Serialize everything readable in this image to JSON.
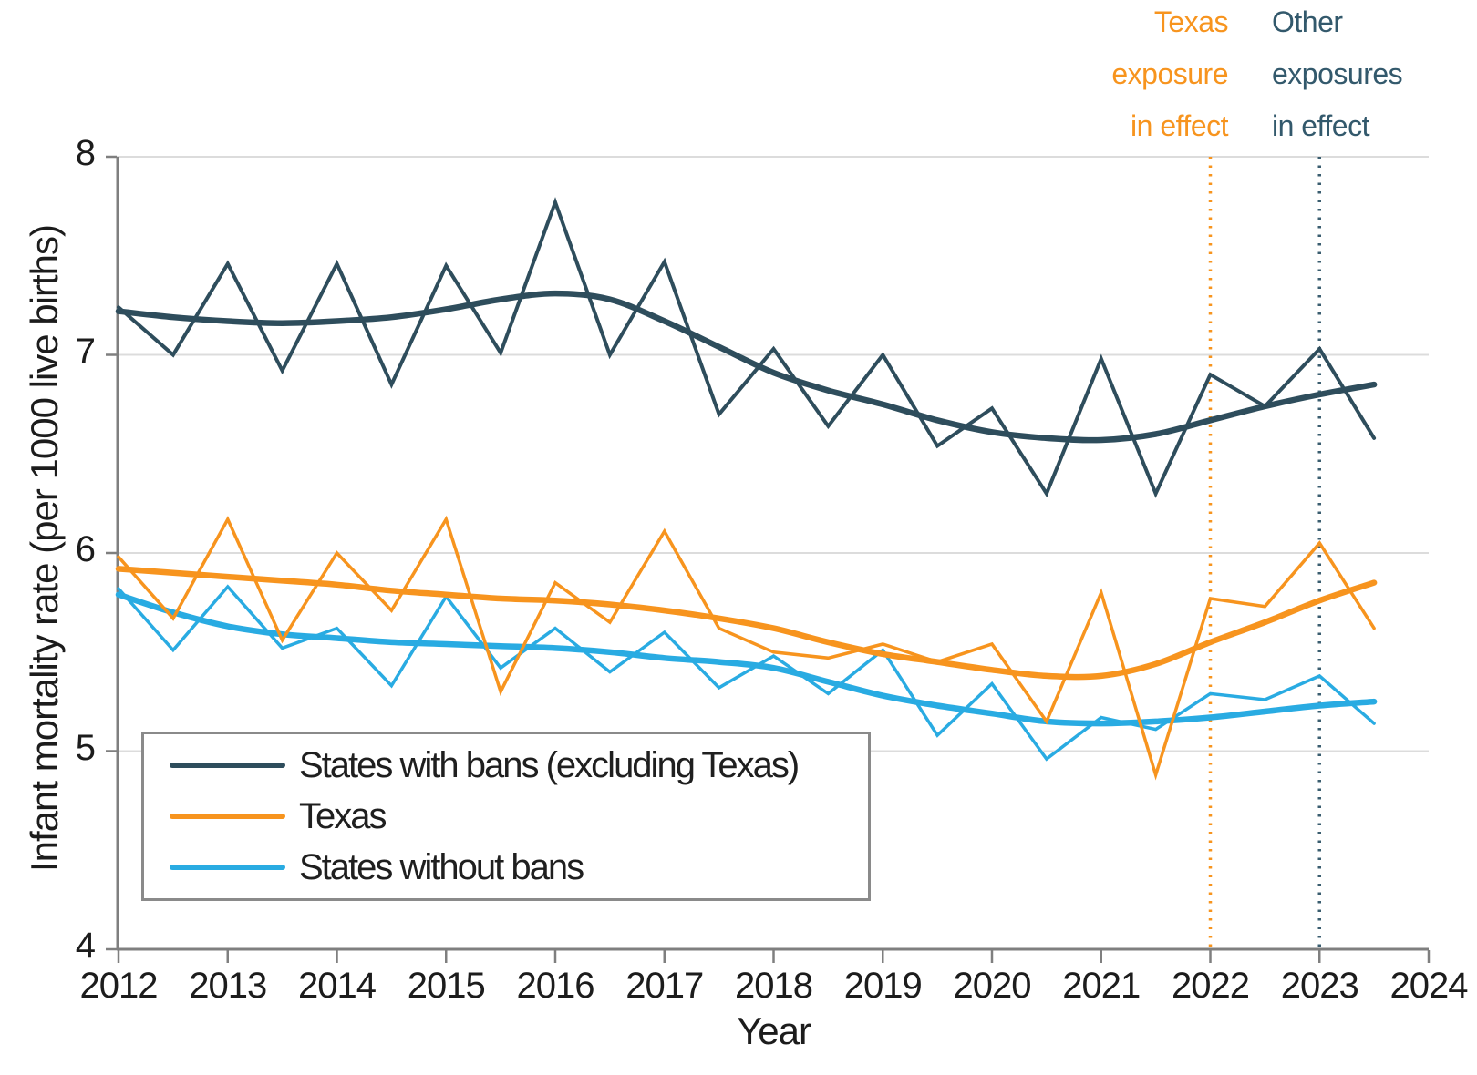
{
  "axes": {
    "x": {
      "title": "Year",
      "ticks": [
        2012,
        2013,
        2014,
        2015,
        2016,
        2017,
        2018,
        2019,
        2020,
        2021,
        2022,
        2023,
        2024
      ]
    },
    "y": {
      "title": "Infant mortality rate (per 1000 live births)",
      "ticks": [
        8,
        7,
        6,
        5,
        4
      ]
    }
  },
  "annotations": {
    "texas": {
      "lines": [
        "Texas",
        "exposure",
        "in effect"
      ],
      "color": "#F7941E"
    },
    "other": {
      "lines": [
        "Other",
        "exposures",
        "in effect"
      ],
      "color": "#33596C"
    }
  },
  "legend": {
    "items": [
      {
        "label": "States with bans (excluding Texas)",
        "series": "bans_raw"
      },
      {
        "label": "Texas",
        "series": "texas_raw"
      },
      {
        "label": "States without bans",
        "series": "nobans_raw"
      }
    ]
  },
  "chart_data": {
    "type": "line",
    "title": "",
    "xlabel": "Year",
    "ylabel": "Infant mortality rate (per 1000 live births)",
    "xlim": [
      2012,
      2024
    ],
    "ylim": [
      4,
      8
    ],
    "grid": "horizontal",
    "legend_position": "lower-left",
    "x": [
      2012,
      2012.5,
      2013,
      2013.5,
      2014,
      2014.5,
      2015,
      2015.5,
      2016,
      2016.5,
      2017,
      2017.5,
      2018,
      2018.5,
      2019,
      2019.5,
      2020,
      2020.5,
      2021,
      2021.5,
      2022,
      2022.5,
      2023,
      2023.5
    ],
    "series": [
      {
        "name": "bans_smooth",
        "label": "States with bans (excluding Texas) trend",
        "color": "#2E4D5C",
        "style": "smooth",
        "width": 6.5,
        "values": [
          7.22,
          7.19,
          7.17,
          7.16,
          7.17,
          7.19,
          7.23,
          7.28,
          7.31,
          7.28,
          7.17,
          7.04,
          6.91,
          6.82,
          6.75,
          6.67,
          6.61,
          6.58,
          6.57,
          6.6,
          6.67,
          6.74,
          6.8,
          6.85
        ]
      },
      {
        "name": "bans_raw",
        "label": "States with bans (excluding Texas)",
        "color": "#2E4D5C",
        "style": "raw",
        "width": 4,
        "values": [
          7.24,
          7.0,
          7.46,
          6.92,
          7.46,
          6.85,
          7.45,
          7.01,
          7.77,
          7.0,
          7.47,
          6.7,
          7.03,
          6.64,
          7.0,
          6.54,
          6.73,
          6.3,
          6.98,
          6.3,
          6.9,
          6.74,
          7.03,
          6.58
        ]
      },
      {
        "name": "nobans_smooth",
        "label": "States without bans trend",
        "color": "#29ABE2",
        "style": "smooth",
        "width": 6.5,
        "values": [
          5.79,
          5.7,
          5.63,
          5.59,
          5.57,
          5.55,
          5.54,
          5.53,
          5.52,
          5.5,
          5.47,
          5.45,
          5.42,
          5.35,
          5.28,
          5.23,
          5.19,
          5.15,
          5.14,
          5.15,
          5.17,
          5.2,
          5.23,
          5.25
        ]
      },
      {
        "name": "nobans_raw",
        "label": "States without bans",
        "color": "#29ABE2",
        "style": "raw",
        "width": 3.5,
        "values": [
          5.82,
          5.51,
          5.83,
          5.52,
          5.62,
          5.33,
          5.78,
          5.42,
          5.62,
          5.4,
          5.6,
          5.32,
          5.48,
          5.29,
          5.51,
          5.08,
          5.34,
          4.96,
          5.17,
          5.11,
          5.29,
          5.26,
          5.38,
          5.14
        ]
      },
      {
        "name": "texas_smooth",
        "label": "Texas trend",
        "color": "#F7941E",
        "style": "smooth",
        "width": 6.5,
        "values": [
          5.92,
          5.9,
          5.88,
          5.86,
          5.84,
          5.81,
          5.79,
          5.77,
          5.76,
          5.74,
          5.71,
          5.67,
          5.62,
          5.55,
          5.49,
          5.45,
          5.41,
          5.38,
          5.38,
          5.44,
          5.55,
          5.65,
          5.76,
          5.85
        ]
      },
      {
        "name": "texas_raw",
        "label": "Texas",
        "color": "#F7941E",
        "style": "raw",
        "width": 3.5,
        "values": [
          5.98,
          5.67,
          6.17,
          5.56,
          6.0,
          5.71,
          6.17,
          5.3,
          5.85,
          5.65,
          6.11,
          5.62,
          5.5,
          5.47,
          5.54,
          5.45,
          5.54,
          5.15,
          5.8,
          4.88,
          5.77,
          5.73,
          6.05,
          5.62
        ]
      }
    ],
    "vlines": [
      {
        "x": 2022,
        "color": "#F7941E",
        "label": "Texas exposure in effect"
      },
      {
        "x": 2023,
        "color": "#3A5D6F",
        "label": "Other exposures in effect"
      }
    ],
    "colors": {
      "grid": "#DCDCDC",
      "axis": "#7F7F7F",
      "text": "#1c1c1c"
    }
  }
}
